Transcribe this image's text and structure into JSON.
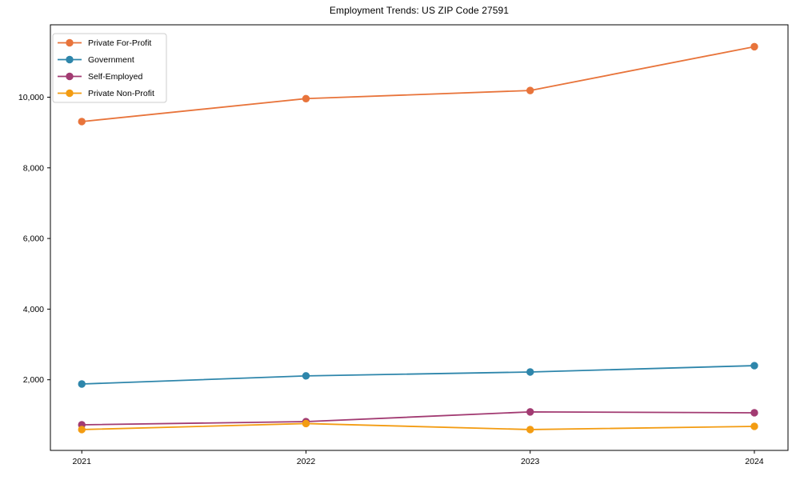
{
  "title": "Employment Trends: US ZIP Code 27591",
  "chart_data": {
    "type": "line",
    "title": "Employment Trends: US ZIP Code 27591",
    "xlabel": "",
    "ylabel": "",
    "x": [
      2021,
      2022,
      2023,
      2024
    ],
    "x_tick_labels": [
      "2021",
      "2022",
      "2023",
      "2024"
    ],
    "y_ticks": [
      2000,
      4000,
      6000,
      8000,
      10000
    ],
    "y_tick_labels": [
      "2,000",
      "4,000",
      "6,000",
      "8,000",
      "10,000"
    ],
    "xlim": [
      2020.86,
      2024.15
    ],
    "ylim": [
      0,
      12050
    ],
    "grid": false,
    "legend_position": "upper-left",
    "background_color": "#ffffff",
    "axes_color": "#000000",
    "series": [
      {
        "name": "Private For-Profit",
        "color": "#E8743B",
        "values": [
          9310,
          9960,
          10190,
          11430
        ]
      },
      {
        "name": "Government",
        "color": "#2E86AB",
        "values": [
          1880,
          2110,
          2220,
          2400
        ]
      },
      {
        "name": "Self-Employed",
        "color": "#A23B72",
        "values": [
          725,
          815,
          1090,
          1065
        ]
      },
      {
        "name": "Private Non-Profit",
        "color": "#F39C12",
        "values": [
          590,
          760,
          590,
          680
        ]
      }
    ]
  }
}
